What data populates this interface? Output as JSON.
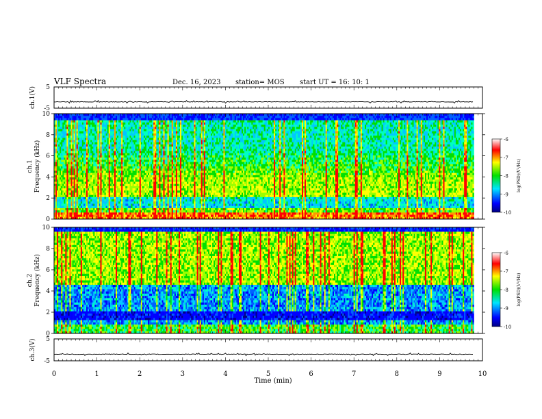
{
  "header": {
    "title": "VLF Spectra",
    "date": "Dec. 16, 2023",
    "station": "station= MOS",
    "start": "start  UT  =   16: 10: 1"
  },
  "chart_data": [
    {
      "type": "line",
      "name": "ch1-waveform",
      "ylabel": "ch.1(V)",
      "ylim": [
        -5,
        5
      ],
      "yticks": [
        "5",
        "-5"
      ],
      "x_range": [
        0,
        10
      ],
      "baseline": -2
    },
    {
      "type": "heatmap",
      "name": "ch1-spectrogram",
      "ylabel": "ch.1\nFrequency (kHz)",
      "ylim": [
        0,
        10
      ],
      "yticks": [
        "0",
        "2",
        "4",
        "6",
        "8",
        "10"
      ],
      "x_range": [
        0,
        9.8
      ],
      "colorbar": {
        "label": "log(PSD)(V²/Hz)",
        "ticks": [
          "-6",
          "-7",
          "-8",
          "-9",
          "-10"
        ],
        "range": [
          -10,
          -6
        ]
      }
    },
    {
      "type": "heatmap",
      "name": "ch2-spectrogram",
      "ylabel": "ch.2\nFrequency (kHz)",
      "ylim": [
        0,
        10
      ],
      "yticks": [
        "0",
        "2",
        "4",
        "6",
        "8",
        "10"
      ],
      "x_range": [
        0,
        9.8
      ],
      "colorbar": {
        "label": "log(PSD)(V²/Hz)",
        "ticks": [
          "-6",
          "-7",
          "-8",
          "-9",
          "-10"
        ],
        "range": [
          -10,
          -6
        ]
      }
    },
    {
      "type": "line",
      "name": "ch3-waveform",
      "ylabel": "ch.3(V)",
      "ylim": [
        -5,
        5
      ],
      "yticks": [
        "5",
        "-5"
      ],
      "x_range": [
        0,
        10
      ],
      "baseline": -2
    }
  ],
  "xaxis": {
    "label": "Time  (min)",
    "ticks": [
      "0",
      "1",
      "2",
      "3",
      "4",
      "5",
      "6",
      "7",
      "8",
      "9",
      "10"
    ],
    "range": [
      0,
      10
    ]
  },
  "colors": {
    "frame": "#000000",
    "background": "#ffffff"
  }
}
